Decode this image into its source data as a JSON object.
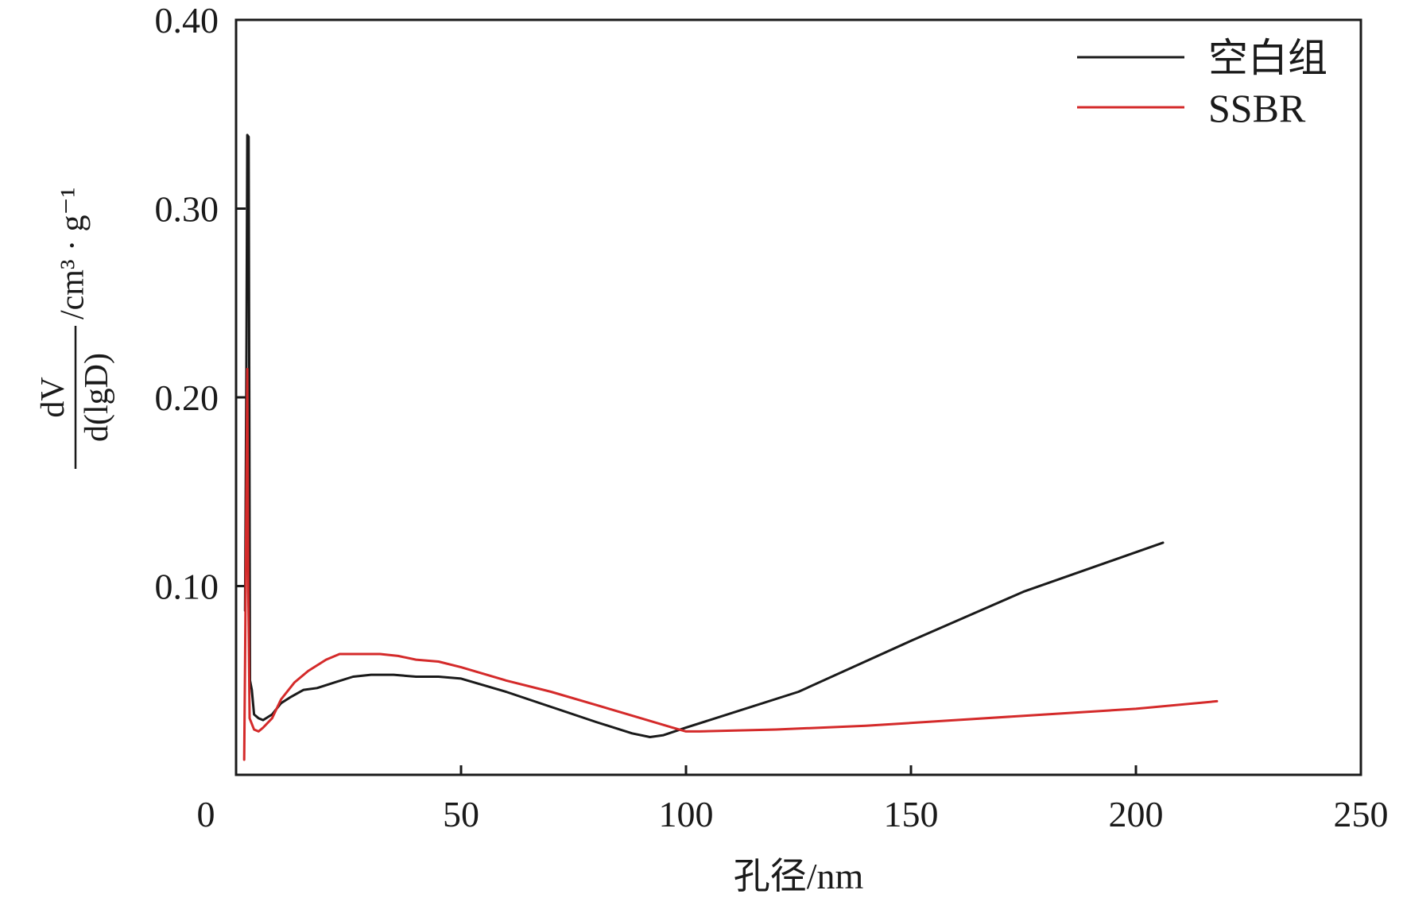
{
  "chart_data": {
    "type": "line",
    "title": "",
    "xlabel": "孔径/nm",
    "ylabel": {
      "numerator": "dV",
      "denominator": "d(lgD)",
      "unit": "/cm³ · g⁻¹"
    },
    "xlim": [
      0,
      250
    ],
    "ylim": [
      0,
      0.4
    ],
    "x_ticks": [
      0,
      50,
      100,
      150,
      200,
      250
    ],
    "x_tick_labels": [
      "0",
      "50",
      "100",
      "150",
      "200",
      "250"
    ],
    "y_ticks": [
      0.1,
      0.2,
      0.3,
      0.4
    ],
    "y_tick_labels": [
      "0.10",
      "0.20",
      "0.30",
      "0.40"
    ],
    "grid": false,
    "legend_position": "top-right",
    "series": [
      {
        "name": "空白组",
        "color": "#1a1a1a",
        "points": [
          [
            2.0,
            0.087
          ],
          [
            2.3,
            0.22
          ],
          [
            2.5,
            0.339
          ],
          [
            2.8,
            0.338
          ],
          [
            3.1,
            0.05
          ],
          [
            3.5,
            0.045
          ],
          [
            4.0,
            0.032
          ],
          [
            5.0,
            0.03
          ],
          [
            6.0,
            0.029
          ],
          [
            8.0,
            0.032
          ],
          [
            10.0,
            0.038
          ],
          [
            12.0,
            0.041
          ],
          [
            15.0,
            0.045
          ],
          [
            18.0,
            0.046
          ],
          [
            22.0,
            0.049
          ],
          [
            26.0,
            0.052
          ],
          [
            30.0,
            0.053
          ],
          [
            35.0,
            0.053
          ],
          [
            40.0,
            0.052
          ],
          [
            45.0,
            0.052
          ],
          [
            50.0,
            0.051
          ],
          [
            60.0,
            0.044
          ],
          [
            70.0,
            0.036
          ],
          [
            80.0,
            0.028
          ],
          [
            88.0,
            0.022
          ],
          [
            92.0,
            0.02
          ],
          [
            95.0,
            0.021
          ],
          [
            100.0,
            0.025
          ],
          [
            125.0,
            0.044
          ],
          [
            150.0,
            0.071
          ],
          [
            175.0,
            0.097
          ],
          [
            206.0,
            0.123
          ]
        ]
      },
      {
        "name": "SSBR",
        "color": "#d42a2a",
        "points": [
          [
            1.8,
            0.008
          ],
          [
            2.0,
            0.06
          ],
          [
            2.3,
            0.15
          ],
          [
            2.5,
            0.215
          ],
          [
            2.7,
            0.1
          ],
          [
            3.0,
            0.03
          ],
          [
            4.0,
            0.024
          ],
          [
            5.0,
            0.023
          ],
          [
            6.0,
            0.025
          ],
          [
            8.0,
            0.03
          ],
          [
            10.0,
            0.04
          ],
          [
            13.0,
            0.049
          ],
          [
            16.0,
            0.055
          ],
          [
            20.0,
            0.061
          ],
          [
            23.0,
            0.064
          ],
          [
            26.0,
            0.064
          ],
          [
            32.0,
            0.064
          ],
          [
            36.0,
            0.063
          ],
          [
            40.0,
            0.061
          ],
          [
            45.0,
            0.06
          ],
          [
            50.0,
            0.057
          ],
          [
            60.0,
            0.05
          ],
          [
            70.0,
            0.044
          ],
          [
            80.0,
            0.037
          ],
          [
            90.0,
            0.03
          ],
          [
            97.0,
            0.025
          ],
          [
            100.0,
            0.023
          ],
          [
            103.0,
            0.023
          ],
          [
            120.0,
            0.024
          ],
          [
            140.0,
            0.026
          ],
          [
            160.0,
            0.029
          ],
          [
            180.0,
            0.032
          ],
          [
            200.0,
            0.035
          ],
          [
            218.0,
            0.039
          ]
        ]
      }
    ]
  }
}
